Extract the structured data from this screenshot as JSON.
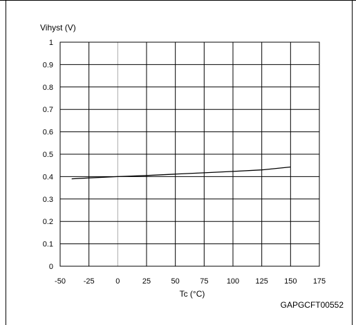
{
  "chart_data": {
    "type": "line",
    "title": "",
    "xlabel": "Tc (°C)",
    "ylabel": "Vihyst (V)",
    "xlim": [
      -50,
      175
    ],
    "ylim": [
      0,
      1
    ],
    "x_ticks": [
      "-50",
      "-25",
      "0",
      "25",
      "50",
      "75",
      "100",
      "125",
      "150",
      "175"
    ],
    "y_ticks": [
      "0",
      "0.1",
      "0.2",
      "0.3",
      "0.4",
      "0.5",
      "0.6",
      "0.7",
      "0.8",
      "0.9",
      "1"
    ],
    "grid": true,
    "series": [
      {
        "x": [
          -40,
          -25,
          0,
          25,
          50,
          75,
          100,
          125,
          150
        ],
        "y": [
          0.39,
          0.394,
          0.4,
          0.405,
          0.411,
          0.417,
          0.423,
          0.43,
          0.443
        ]
      }
    ],
    "annotation": "GAPGCFT00552"
  }
}
